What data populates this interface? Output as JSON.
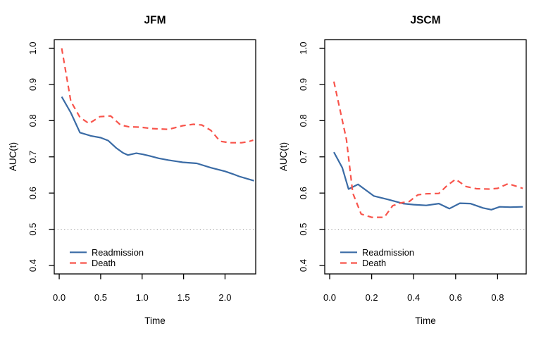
{
  "page": {
    "background": "#ffffff"
  },
  "colors": {
    "readmission": "#3A6BA5",
    "death": "#F8544B",
    "reference": "#9a9a9a",
    "axis": "#000000"
  },
  "chart_data": [
    {
      "type": "line",
      "title": "JFM",
      "xlabel": "Time",
      "ylabel": "AUC(t)",
      "xlim": [
        -0.06,
        2.37
      ],
      "ylim": [
        0.3767,
        1.0233
      ],
      "x_ticks": [
        0.0,
        0.5,
        1.0,
        1.5,
        2.0
      ],
      "x_tick_labels": [
        "0.0",
        "0.5",
        "1.0",
        "1.5",
        "2.0"
      ],
      "y_ticks": [
        0.4,
        0.5,
        0.6,
        0.7,
        0.8,
        0.9,
        1.0
      ],
      "y_tick_labels": [
        "0.4",
        "0.5",
        "0.6",
        "0.7",
        "0.8",
        "0.9",
        "1.0"
      ],
      "reference_line": 0.5,
      "grid": false,
      "legend_position": "bottom-left",
      "series": [
        {
          "name": "Readmission",
          "color": "#3A6BA5",
          "style": "solid",
          "points": [
            [
              0.03,
              0.866
            ],
            [
              0.14,
              0.822
            ],
            [
              0.25,
              0.767
            ],
            [
              0.38,
              0.758
            ],
            [
              0.5,
              0.753
            ],
            [
              0.59,
              0.745
            ],
            [
              0.69,
              0.724
            ],
            [
              0.77,
              0.711
            ],
            [
              0.83,
              0.705
            ],
            [
              0.93,
              0.71
            ],
            [
              1.01,
              0.707
            ],
            [
              1.1,
              0.702
            ],
            [
              1.2,
              0.696
            ],
            [
              1.32,
              0.691
            ],
            [
              1.49,
              0.685
            ],
            [
              1.66,
              0.682
            ],
            [
              1.83,
              0.67
            ],
            [
              2.0,
              0.66
            ],
            [
              2.09,
              0.653
            ],
            [
              2.17,
              0.646
            ],
            [
              2.35,
              0.634
            ]
          ]
        },
        {
          "name": "Death",
          "color": "#F8544B",
          "style": "dashed",
          "points": [
            [
              0.03,
              1.0
            ],
            [
              0.14,
              0.854
            ],
            [
              0.25,
              0.809
            ],
            [
              0.36,
              0.792
            ],
            [
              0.49,
              0.811
            ],
            [
              0.62,
              0.813
            ],
            [
              0.74,
              0.788
            ],
            [
              0.84,
              0.783
            ],
            [
              0.98,
              0.782
            ],
            [
              1.12,
              0.778
            ],
            [
              1.32,
              0.776
            ],
            [
              1.49,
              0.786
            ],
            [
              1.62,
              0.79
            ],
            [
              1.72,
              0.788
            ],
            [
              1.83,
              0.773
            ],
            [
              1.94,
              0.743
            ],
            [
              2.06,
              0.739
            ],
            [
              2.2,
              0.739
            ],
            [
              2.28,
              0.742
            ],
            [
              2.34,
              0.746
            ]
          ]
        }
      ]
    },
    {
      "type": "line",
      "title": "JSCM",
      "xlabel": "Time",
      "ylabel": "AUC(t)",
      "xlim": [
        -0.0235,
        0.9362
      ],
      "ylim": [
        0.3767,
        1.0233
      ],
      "x_ticks": [
        0.0,
        0.2,
        0.4,
        0.6,
        0.8
      ],
      "x_tick_labels": [
        "0.0",
        "0.2",
        "0.4",
        "0.6",
        "0.8"
      ],
      "y_ticks": [
        0.4,
        0.5,
        0.6,
        0.7,
        0.8,
        0.9,
        1.0
      ],
      "y_tick_labels": [
        "0.4",
        "0.5",
        "0.6",
        "0.7",
        "0.8",
        "0.9",
        "1.0"
      ],
      "reference_line": 0.5,
      "grid": false,
      "legend_position": "bottom-left",
      "series": [
        {
          "name": "Readmission",
          "color": "#3A6BA5",
          "style": "solid",
          "points": [
            [
              0.02,
              0.713
            ],
            [
              0.06,
              0.67
            ],
            [
              0.09,
              0.611
            ],
            [
              0.135,
              0.624
            ],
            [
              0.21,
              0.592
            ],
            [
              0.28,
              0.582
            ],
            [
              0.35,
              0.571
            ],
            [
              0.4,
              0.568
            ],
            [
              0.46,
              0.566
            ],
            [
              0.52,
              0.571
            ],
            [
              0.57,
              0.557
            ],
            [
              0.62,
              0.572
            ],
            [
              0.67,
              0.571
            ],
            [
              0.73,
              0.559
            ],
            [
              0.77,
              0.554
            ],
            [
              0.81,
              0.562
            ],
            [
              0.86,
              0.561
            ],
            [
              0.92,
              0.562
            ]
          ]
        },
        {
          "name": "Death",
          "color": "#F8544B",
          "style": "dashed",
          "points": [
            [
              0.02,
              0.908
            ],
            [
              0.08,
              0.748
            ],
            [
              0.11,
              0.6
            ],
            [
              0.15,
              0.542
            ],
            [
              0.2,
              0.533
            ],
            [
              0.26,
              0.533
            ],
            [
              0.3,
              0.565
            ],
            [
              0.34,
              0.573
            ],
            [
              0.38,
              0.577
            ],
            [
              0.42,
              0.595
            ],
            [
              0.46,
              0.598
            ],
            [
              0.52,
              0.599
            ],
            [
              0.56,
              0.621
            ],
            [
              0.6,
              0.638
            ],
            [
              0.65,
              0.618
            ],
            [
              0.7,
              0.612
            ],
            [
              0.76,
              0.611
            ],
            [
              0.8,
              0.613
            ],
            [
              0.85,
              0.626
            ],
            [
              0.92,
              0.613
            ]
          ]
        }
      ]
    }
  ]
}
